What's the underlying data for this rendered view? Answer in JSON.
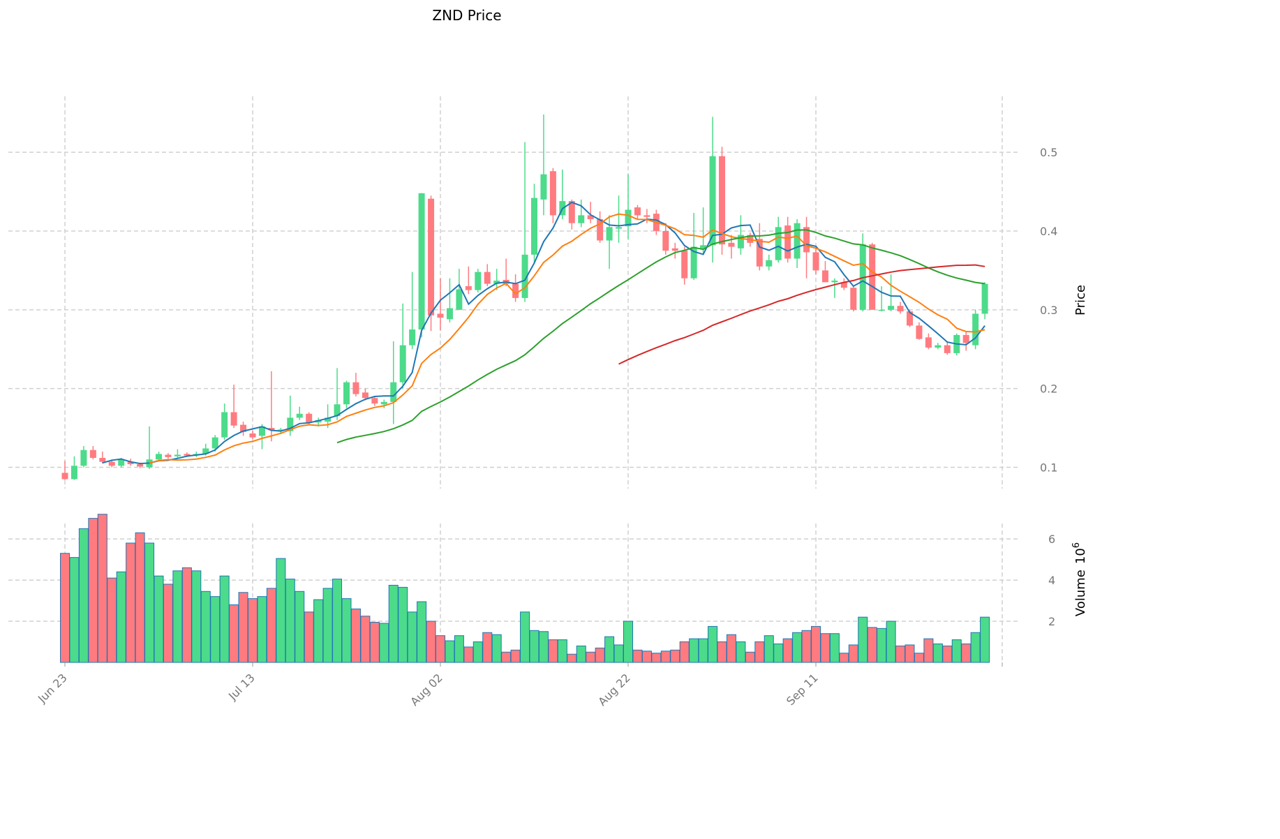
{
  "chart_data": {
    "type": "candlestick",
    "title": "ZND Price",
    "ylabel_price": "Price",
    "ylabel_volume": "Volume",
    "volume_multiplier": "10",
    "volume_exponent": "6",
    "grid": true,
    "price_ylim": [
      0.073,
      0.571
    ],
    "volume_ylim": [
      0,
      6.75
    ],
    "price_ticks": [
      0.1,
      0.2,
      0.3,
      0.4,
      0.5
    ],
    "volume_ticks": [
      2,
      4,
      6
    ],
    "x_ticks": [
      {
        "label": "Jun 23",
        "day": 0
      },
      {
        "label": "Jul 13",
        "day": 20
      },
      {
        "label": "Aug 02",
        "day": 40
      },
      {
        "label": "Aug 22",
        "day": 60
      },
      {
        "label": "Sep 11",
        "day": 80
      }
    ],
    "x_range_days": [
      -0.5,
      100
    ],
    "colors": {
      "up": "#4cdb8a",
      "down": "#ff7b80",
      "volume_edge": "#1f77b4",
      "grid": "#d0d0d0"
    },
    "moving_averages": [
      {
        "window": 5,
        "color": "#1f77b4"
      },
      {
        "window": 10,
        "color": "#ff7f0e"
      },
      {
        "window": 30,
        "color": "#2ca02c"
      },
      {
        "window": 60,
        "color": "#d62728"
      }
    ],
    "ohlc": [
      [
        0.093,
        0.108,
        0.084,
        0.085
      ],
      [
        0.085,
        0.114,
        0.084,
        0.102
      ],
      [
        0.102,
        0.127,
        0.1,
        0.122
      ],
      [
        0.122,
        0.127,
        0.11,
        0.112
      ],
      [
        0.112,
        0.12,
        0.105,
        0.107
      ],
      [
        0.107,
        0.11,
        0.1,
        0.102
      ],
      [
        0.102,
        0.112,
        0.1,
        0.11
      ],
      [
        0.107,
        0.111,
        0.102,
        0.104
      ],
      [
        0.104,
        0.106,
        0.099,
        0.101
      ],
      [
        0.1,
        0.152,
        0.098,
        0.11
      ],
      [
        0.11,
        0.12,
        0.108,
        0.117
      ],
      [
        0.116,
        0.118,
        0.111,
        0.113
      ],
      [
        0.114,
        0.123,
        0.112,
        0.116
      ],
      [
        0.117,
        0.119,
        0.113,
        0.115
      ],
      [
        0.115,
        0.12,
        0.113,
        0.117
      ],
      [
        0.117,
        0.13,
        0.115,
        0.124
      ],
      [
        0.124,
        0.141,
        0.12,
        0.138
      ],
      [
        0.138,
        0.181,
        0.135,
        0.17
      ],
      [
        0.17,
        0.205,
        0.15,
        0.153
      ],
      [
        0.154,
        0.158,
        0.14,
        0.145
      ],
      [
        0.143,
        0.147,
        0.136,
        0.138
      ],
      [
        0.14,
        0.155,
        0.123,
        0.152
      ],
      [
        0.15,
        0.222,
        0.133,
        0.147
      ],
      [
        0.147,
        0.15,
        0.142,
        0.148
      ],
      [
        0.146,
        0.191,
        0.14,
        0.163
      ],
      [
        0.163,
        0.177,
        0.16,
        0.168
      ],
      [
        0.168,
        0.17,
        0.155,
        0.157
      ],
      [
        0.157,
        0.163,
        0.152,
        0.16
      ],
      [
        0.158,
        0.18,
        0.15,
        0.163
      ],
      [
        0.165,
        0.226,
        0.16,
        0.18
      ],
      [
        0.18,
        0.21,
        0.175,
        0.208
      ],
      [
        0.208,
        0.22,
        0.19,
        0.193
      ],
      [
        0.195,
        0.2,
        0.185,
        0.188
      ],
      [
        0.188,
        0.19,
        0.178,
        0.181
      ],
      [
        0.18,
        0.186,
        0.175,
        0.183
      ],
      [
        0.183,
        0.26,
        0.155,
        0.208
      ],
      [
        0.208,
        0.308,
        0.2,
        0.255
      ],
      [
        0.255,
        0.348,
        0.25,
        0.275
      ],
      [
        0.275,
        0.448,
        0.265,
        0.448
      ],
      [
        0.441,
        0.445,
        0.273,
        0.293
      ],
      [
        0.295,
        0.34,
        0.274,
        0.29
      ],
      [
        0.288,
        0.34,
        0.284,
        0.302
      ],
      [
        0.3,
        0.352,
        0.3,
        0.326
      ],
      [
        0.33,
        0.355,
        0.32,
        0.325
      ],
      [
        0.325,
        0.352,
        0.322,
        0.348
      ],
      [
        0.348,
        0.358,
        0.33,
        0.333
      ],
      [
        0.333,
        0.352,
        0.325,
        0.337
      ],
      [
        0.338,
        0.365,
        0.33,
        0.333
      ],
      [
        0.333,
        0.345,
        0.31,
        0.315
      ],
      [
        0.315,
        0.513,
        0.31,
        0.37
      ],
      [
        0.37,
        0.46,
        0.36,
        0.442
      ],
      [
        0.44,
        0.548,
        0.42,
        0.472
      ],
      [
        0.476,
        0.48,
        0.41,
        0.42
      ],
      [
        0.42,
        0.478,
        0.415,
        0.438
      ],
      [
        0.438,
        0.44,
        0.402,
        0.41
      ],
      [
        0.41,
        0.44,
        0.405,
        0.42
      ],
      [
        0.42,
        0.437,
        0.41,
        0.415
      ],
      [
        0.415,
        0.425,
        0.385,
        0.388
      ],
      [
        0.388,
        0.42,
        0.352,
        0.405
      ],
      [
        0.403,
        0.445,
        0.385,
        0.405
      ],
      [
        0.406,
        0.472,
        0.39,
        0.427
      ],
      [
        0.43,
        0.433,
        0.415,
        0.42
      ],
      [
        0.42,
        0.428,
        0.41,
        0.418
      ],
      [
        0.422,
        0.427,
        0.395,
        0.4
      ],
      [
        0.4,
        0.41,
        0.37,
        0.375
      ],
      [
        0.378,
        0.385,
        0.365,
        0.375
      ],
      [
        0.375,
        0.38,
        0.332,
        0.34
      ],
      [
        0.34,
        0.423,
        0.338,
        0.38
      ],
      [
        0.378,
        0.43,
        0.37,
        0.382
      ],
      [
        0.382,
        0.545,
        0.36,
        0.495
      ],
      [
        0.495,
        0.507,
        0.37,
        0.383
      ],
      [
        0.385,
        0.395,
        0.365,
        0.38
      ],
      [
        0.378,
        0.42,
        0.37,
        0.395
      ],
      [
        0.395,
        0.398,
        0.38,
        0.385
      ],
      [
        0.39,
        0.41,
        0.35,
        0.355
      ],
      [
        0.355,
        0.37,
        0.35,
        0.363
      ],
      [
        0.363,
        0.418,
        0.36,
        0.405
      ],
      [
        0.407,
        0.418,
        0.36,
        0.365
      ],
      [
        0.365,
        0.415,
        0.353,
        0.41
      ],
      [
        0.405,
        0.418,
        0.34,
        0.373
      ],
      [
        0.373,
        0.38,
        0.345,
        0.35
      ],
      [
        0.35,
        0.362,
        0.335,
        0.335
      ],
      [
        0.335,
        0.34,
        0.315,
        0.337
      ],
      [
        0.335,
        0.34,
        0.325,
        0.328
      ],
      [
        0.328,
        0.33,
        0.298,
        0.3
      ],
      [
        0.3,
        0.397,
        0.298,
        0.383
      ],
      [
        0.383,
        0.385,
        0.3,
        0.3
      ],
      [
        0.3,
        0.33,
        0.298,
        0.3
      ],
      [
        0.3,
        0.345,
        0.298,
        0.305
      ],
      [
        0.305,
        0.31,
        0.295,
        0.298
      ],
      [
        0.298,
        0.3,
        0.278,
        0.28
      ],
      [
        0.28,
        0.284,
        0.262,
        0.263
      ],
      [
        0.265,
        0.27,
        0.25,
        0.252
      ],
      [
        0.252,
        0.258,
        0.25,
        0.255
      ],
      [
        0.255,
        0.26,
        0.243,
        0.245
      ],
      [
        0.245,
        0.27,
        0.242,
        0.268
      ],
      [
        0.268,
        0.272,
        0.248,
        0.258
      ],
      [
        0.255,
        0.3,
        0.25,
        0.295
      ],
      [
        0.295,
        0.335,
        0.288,
        0.333
      ]
    ],
    "volume": [
      5.3,
      5.1,
      6.5,
      7.0,
      7.2,
      4.1,
      4.4,
      5.8,
      6.3,
      5.8,
      4.2,
      3.8,
      4.45,
      4.6,
      4.45,
      3.45,
      3.2,
      4.2,
      2.8,
      3.4,
      3.1,
      3.2,
      3.6,
      5.05,
      4.05,
      3.45,
      2.45,
      3.05,
      3.6,
      4.05,
      3.1,
      2.6,
      2.25,
      1.95,
      1.9,
      3.75,
      3.65,
      2.45,
      2.95,
      2.0,
      1.3,
      1.05,
      1.3,
      0.75,
      1.0,
      1.45,
      1.35,
      0.5,
      0.6,
      2.45,
      1.55,
      1.5,
      1.1,
      1.1,
      0.4,
      0.8,
      0.5,
      0.7,
      1.25,
      0.85,
      2.0,
      0.6,
      0.55,
      0.45,
      0.55,
      0.6,
      1.0,
      1.15,
      1.15,
      1.75,
      1.0,
      1.35,
      1.0,
      0.5,
      1.0,
      1.3,
      0.9,
      1.15,
      1.45,
      1.55,
      1.75,
      1.4,
      1.4,
      0.45,
      0.85,
      2.2,
      1.7,
      1.65,
      2.0,
      0.8,
      0.85,
      0.45,
      1.15,
      0.9,
      0.8,
      1.1,
      0.9,
      1.45,
      2.2
    ]
  }
}
